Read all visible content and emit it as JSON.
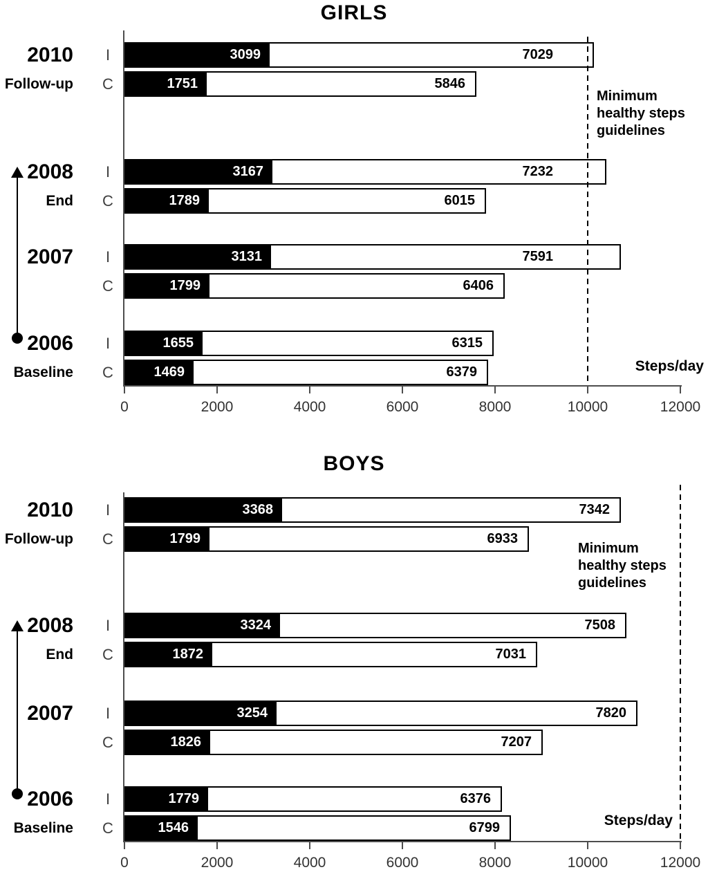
{
  "chart_data": [
    {
      "type": "bar",
      "orientation": "horizontal",
      "stacked": true,
      "title": "GIRLS",
      "axis_label": "Steps/day",
      "x_ticks": [
        0,
        2000,
        4000,
        6000,
        8000,
        10000,
        12000
      ],
      "xlim": [
        0,
        12000
      ],
      "grid": false,
      "segment_colors": {
        "first": "#000000",
        "second": "#ffffff"
      },
      "guideline": {
        "value": 10000,
        "label_lines": [
          "Minimum",
          "healthy steps",
          "guidelines"
        ]
      },
      "timeline_arrow": {
        "from_year": "2006",
        "to_year": "2008"
      },
      "groups": [
        {
          "year": "2010",
          "sublabel": "Follow-up",
          "rows": [
            {
              "label": "I",
              "black_value": 3099,
              "white_value": 7029
            },
            {
              "label": "C",
              "black_value": 1751,
              "white_value": 5846
            }
          ]
        },
        {
          "year": "2008",
          "sublabel": "End",
          "rows": [
            {
              "label": "I",
              "black_value": 3167,
              "white_value": 7232
            },
            {
              "label": "C",
              "black_value": 1789,
              "white_value": 6015
            }
          ]
        },
        {
          "year": "2007",
          "sublabel": "",
          "rows": [
            {
              "label": "I",
              "black_value": 3131,
              "white_value": 7591
            },
            {
              "label": "C",
              "black_value": 1799,
              "white_value": 6406
            }
          ]
        },
        {
          "year": "2006",
          "sublabel": "Baseline",
          "rows": [
            {
              "label": "I",
              "black_value": 1655,
              "white_value": 6315
            },
            {
              "label": "C",
              "black_value": 1469,
              "white_value": 6379
            }
          ]
        }
      ]
    },
    {
      "type": "bar",
      "orientation": "horizontal",
      "stacked": true,
      "title": "BOYS",
      "axis_label": "Steps/day",
      "x_ticks": [
        0,
        2000,
        4000,
        6000,
        8000,
        10000,
        12000
      ],
      "xlim": [
        0,
        12000
      ],
      "grid": false,
      "segment_colors": {
        "first": "#000000",
        "second": "#ffffff"
      },
      "guideline": {
        "value": 12000,
        "label_lines": [
          "Minimum",
          "healthy steps",
          "guidelines"
        ]
      },
      "timeline_arrow": {
        "from_year": "2006",
        "to_year": "2008"
      },
      "groups": [
        {
          "year": "2010",
          "sublabel": "Follow-up",
          "rows": [
            {
              "label": "I",
              "black_value": 3368,
              "white_value": 7342
            },
            {
              "label": "C",
              "black_value": 1799,
              "white_value": 6933
            }
          ]
        },
        {
          "year": "2008",
          "sublabel": "End",
          "rows": [
            {
              "label": "I",
              "black_value": 3324,
              "white_value": 7508
            },
            {
              "label": "C",
              "black_value": 1872,
              "white_value": 7031
            }
          ]
        },
        {
          "year": "2007",
          "sublabel": "",
          "rows": [
            {
              "label": "I",
              "black_value": 3254,
              "white_value": 7820
            },
            {
              "label": "C",
              "black_value": 1826,
              "white_value": 7207
            }
          ]
        },
        {
          "year": "2006",
          "sublabel": "Baseline",
          "rows": [
            {
              "label": "I",
              "black_value": 1779,
              "white_value": 6376
            },
            {
              "label": "C",
              "black_value": 1546,
              "white_value": 6799
            }
          ]
        }
      ]
    }
  ]
}
